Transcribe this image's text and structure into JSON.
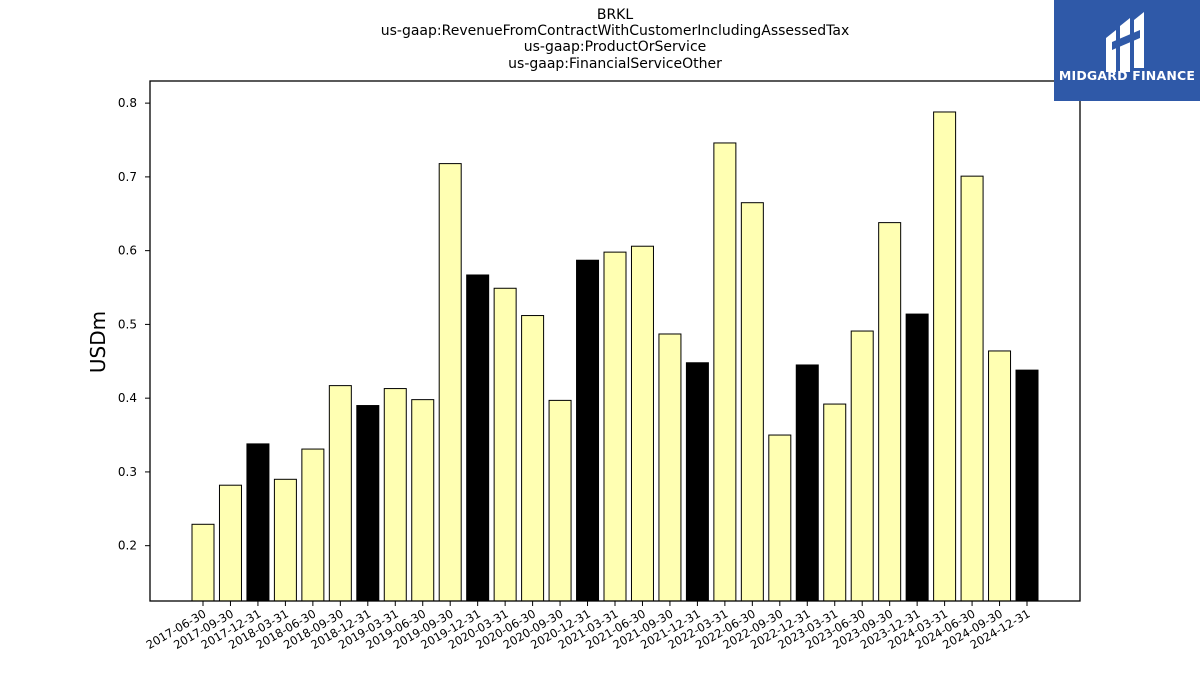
{
  "title_lines": [
    "BRKL",
    "us-gaap:RevenueFromContractWithCustomerIncludingAssessedTax",
    "us-gaap:ProductOrService",
    "us-gaap:FinancialServiceOther"
  ],
  "logo": {
    "text": "MIDGARD FINANCE",
    "icon": "midgard-logo-icon",
    "background": "#2f59a8"
  },
  "chart_data": {
    "type": "bar",
    "title": "BRKL\nus-gaap:RevenueFromContractWithCustomerIncludingAssessedTax\nus-gaap:ProductOrService\nus-gaap:FinancialServiceOther",
    "xlabel": "",
    "ylabel": "USDm",
    "ylim": [
      0.125,
      0.83
    ],
    "yticks": [
      0.2,
      0.3,
      0.4,
      0.5,
      0.6,
      0.7,
      0.8
    ],
    "grid": false,
    "categories": [
      "2017-06-30",
      "2017-09-30",
      "2017-12-31",
      "2018-03-31",
      "2018-06-30",
      "2018-09-30",
      "2018-12-31",
      "2019-03-31",
      "2019-06-30",
      "2019-09-30",
      "2019-12-31",
      "2020-03-31",
      "2020-06-30",
      "2020-09-30",
      "2020-12-31",
      "2021-03-31",
      "2021-06-30",
      "2021-09-30",
      "2021-12-31",
      "2022-03-31",
      "2022-06-30",
      "2022-09-30",
      "2022-12-31",
      "2023-03-31",
      "2023-06-30",
      "2023-09-30",
      "2023-12-31",
      "2024-03-31",
      "2024-06-30",
      "2024-09-30",
      "2024-12-31"
    ],
    "values": [
      0.229,
      0.282,
      0.338,
      0.29,
      0.331,
      0.417,
      0.39,
      0.413,
      0.398,
      0.718,
      0.567,
      0.549,
      0.512,
      0.397,
      0.587,
      0.598,
      0.606,
      0.487,
      0.448,
      0.746,
      0.665,
      0.35,
      0.445,
      0.392,
      0.491,
      0.638,
      0.514,
      0.788,
      0.701,
      0.464,
      0.438
    ],
    "colors": {
      "quarter": "#ffffb2",
      "year_end": "#000000",
      "edge": "#000000"
    }
  }
}
